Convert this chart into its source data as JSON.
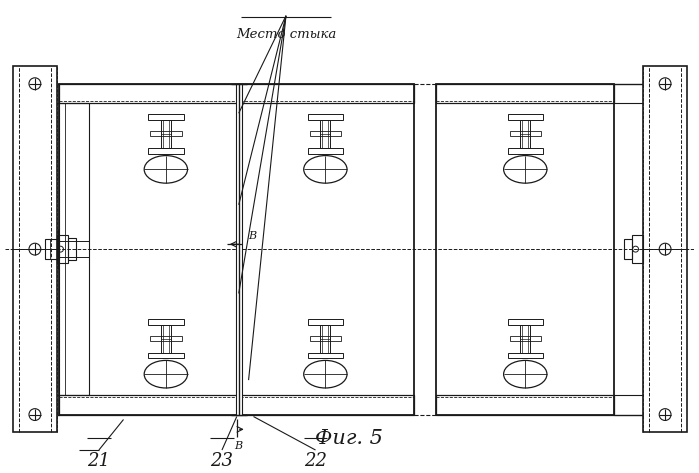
{
  "title": "Фиг. 5",
  "label_mesto_styka": "Место стыка",
  "label_21": "21",
  "label_22": "22",
  "label_23": "23",
  "label_B": "В",
  "bg_color": "#ffffff",
  "line_color": "#1a1a1a",
  "fig_width": 6.99,
  "fig_height": 4.73,
  "dpi": 100
}
